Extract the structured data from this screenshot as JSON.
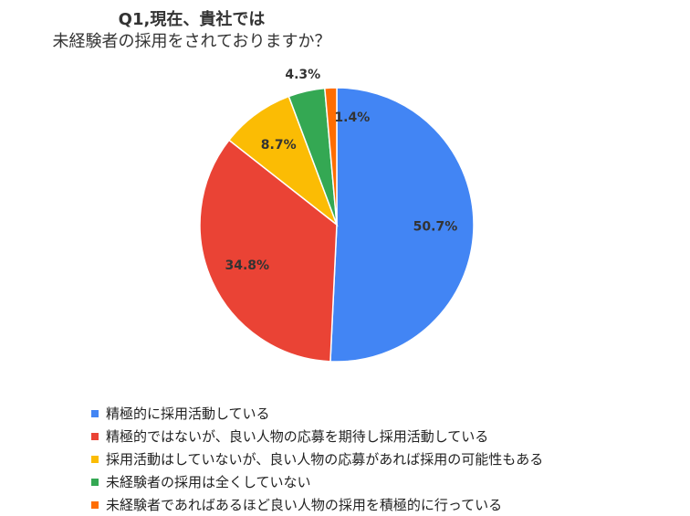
{
  "chart_data": {
    "type": "pie",
    "title": "Q1,現在、貴社では",
    "subtitle": "未経験者の採用をされておりますか？",
    "labels": [
      "精極的に採用活動している",
      "精極的ではないが、良い人物の応募を期待し採用活動している",
      "採用活動はしていないが、良い人物の応募があれば採用の可能性もある",
      "未経験者の採用は全くしていない",
      "未経験者であればあるほど良い人物の採用を積極的に行っている"
    ],
    "values": [
      50.7,
      34.8,
      8.7,
      4.3,
      1.4
    ],
    "value_labels": [
      "50.7%",
      "34.8%",
      "8.7%",
      "4.3%",
      "1.4%"
    ],
    "colors": [
      "#4285f4",
      "#ea4335",
      "#fbbc04",
      "#34a853",
      "#ff6d01"
    ],
    "legend_position": "bottom"
  }
}
